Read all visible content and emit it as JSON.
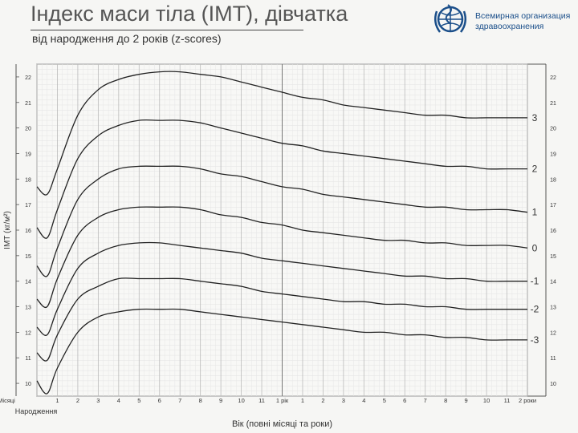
{
  "header": {
    "title": "Індекс маси тіла (ІМТ), дівчатка",
    "subtitle": "від народження до 2 років (z-scores)",
    "org_line1": "Всемирная организация",
    "org_line2": "здравоохранения"
  },
  "chart_data": {
    "type": "line",
    "title": "Індекс маси тіла (ІМТ), дівчатка",
    "subtitle": "від народження до 2 років (z-scores)",
    "ylabel": "ІМТ (кг/м²)",
    "xlabel": "Вік (повні місяці та роки)",
    "ylim": [
      9.5,
      22.5
    ],
    "xlim": [
      0,
      24
    ],
    "y_ticks": [
      10,
      11,
      12,
      13,
      14,
      15,
      16,
      17,
      18,
      19,
      20,
      21,
      22
    ],
    "x_tick_labels": [
      "Місяці",
      "1",
      "2",
      "3",
      "4",
      "5",
      "6",
      "7",
      "8",
      "9",
      "10",
      "11",
      "1 рік",
      "1",
      "2",
      "3",
      "4",
      "5",
      "6",
      "7",
      "8",
      "9",
      "10",
      "11",
      "2 роки"
    ],
    "x_tick_label_below_left": "Народження",
    "grid": true,
    "x": [
      0,
      0.5,
      1,
      2,
      3,
      4,
      5,
      6,
      7,
      8,
      9,
      10,
      11,
      12,
      13,
      14,
      15,
      16,
      17,
      18,
      19,
      20,
      21,
      22,
      23,
      24
    ],
    "series": [
      {
        "name": "3",
        "values": [
          17.7,
          17.4,
          18.4,
          20.5,
          21.5,
          21.9,
          22.1,
          22.2,
          22.2,
          22.1,
          22.0,
          21.8,
          21.6,
          21.4,
          21.2,
          21.1,
          20.9,
          20.8,
          20.7,
          20.6,
          20.5,
          20.5,
          20.4,
          20.4,
          20.4,
          20.4
        ]
      },
      {
        "name": "2",
        "values": [
          16.1,
          15.7,
          16.8,
          18.8,
          19.7,
          20.1,
          20.3,
          20.3,
          20.3,
          20.2,
          20.0,
          19.8,
          19.6,
          19.4,
          19.3,
          19.1,
          19.0,
          18.9,
          18.8,
          18.7,
          18.6,
          18.5,
          18.5,
          18.4,
          18.4,
          18.4
        ]
      },
      {
        "name": "1",
        "values": [
          14.6,
          14.2,
          15.3,
          17.2,
          18.0,
          18.4,
          18.5,
          18.5,
          18.5,
          18.4,
          18.2,
          18.1,
          17.9,
          17.7,
          17.6,
          17.4,
          17.3,
          17.2,
          17.1,
          17.0,
          16.9,
          16.9,
          16.8,
          16.8,
          16.8,
          16.7
        ]
      },
      {
        "name": "0",
        "values": [
          13.3,
          13.0,
          14.1,
          15.8,
          16.5,
          16.8,
          16.9,
          16.9,
          16.9,
          16.8,
          16.6,
          16.5,
          16.3,
          16.2,
          16.0,
          15.9,
          15.8,
          15.7,
          15.6,
          15.6,
          15.5,
          15.5,
          15.4,
          15.4,
          15.4,
          15.3
        ]
      },
      {
        "name": "-1",
        "values": [
          12.2,
          11.9,
          12.9,
          14.5,
          15.1,
          15.4,
          15.5,
          15.5,
          15.4,
          15.3,
          15.2,
          15.1,
          14.9,
          14.8,
          14.7,
          14.6,
          14.5,
          14.4,
          14.3,
          14.2,
          14.2,
          14.1,
          14.1,
          14.0,
          14.0,
          14.0
        ]
      },
      {
        "name": "-2",
        "values": [
          11.2,
          10.9,
          11.9,
          13.3,
          13.8,
          14.1,
          14.1,
          14.1,
          14.1,
          14.0,
          13.9,
          13.8,
          13.6,
          13.5,
          13.4,
          13.3,
          13.2,
          13.2,
          13.1,
          13.1,
          13.0,
          13.0,
          12.9,
          12.9,
          12.9,
          12.9
        ]
      },
      {
        "name": "-3",
        "values": [
          10.1,
          9.6,
          10.6,
          12.0,
          12.6,
          12.8,
          12.9,
          12.9,
          12.9,
          12.8,
          12.7,
          12.6,
          12.5,
          12.4,
          12.3,
          12.2,
          12.1,
          12.0,
          12.0,
          11.9,
          11.9,
          11.8,
          11.8,
          11.7,
          11.7,
          11.7
        ]
      }
    ]
  }
}
